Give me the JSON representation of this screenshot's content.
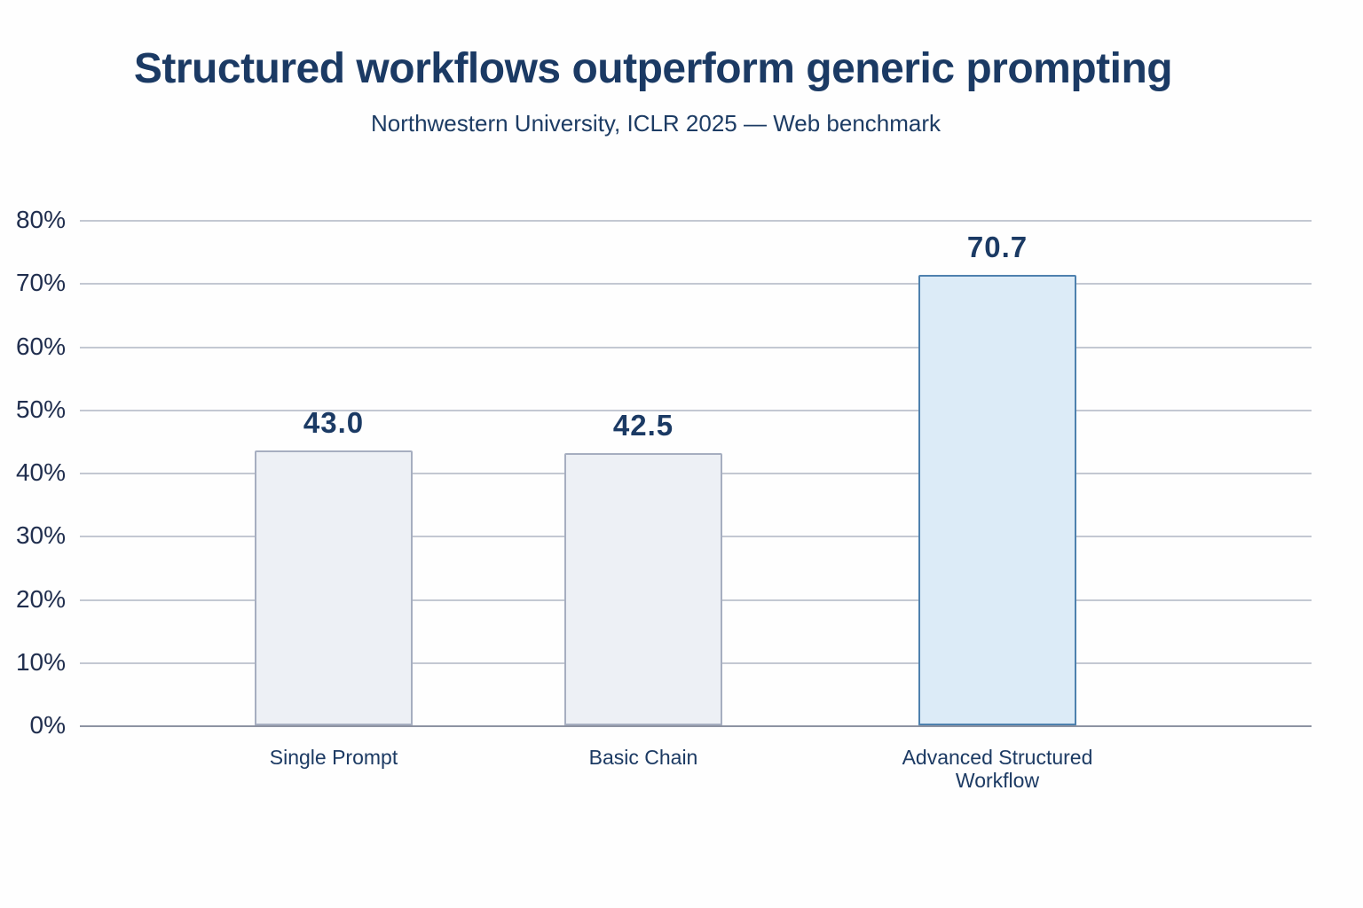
{
  "chart_data": {
    "type": "bar",
    "title": "Structured workflows outperform generic prompting",
    "subtitle": "Northwestern University, ICLR 2025 — Web benchmark",
    "categories": [
      "Single Prompt",
      "Basic Chain",
      "Advanced Structured Workflow"
    ],
    "values": [
      43.0,
      42.5,
      70.7
    ],
    "value_labels": [
      "43.0",
      "42.5",
      "70.7"
    ],
    "xlabel": "",
    "ylabel": "",
    "ylim": [
      0,
      80
    ],
    "yticks": [
      0,
      10,
      20,
      30,
      40,
      50,
      60,
      70,
      80
    ],
    "ytick_labels": [
      "0%",
      "10%",
      "20%",
      "30%",
      "40%",
      "50%",
      "60%",
      "70%",
      "80%"
    ],
    "grid": true,
    "legend": false,
    "highlight_index": 2,
    "colors": {
      "title_text": "#1b3a64",
      "axis_text": "#202e4e",
      "default_fill": "#edf0f5",
      "default_border": "#a6aec0",
      "highlight_fill": "#dcebf7",
      "highlight_border": "#4e81ae",
      "gridline": "#c3c8d2",
      "baseline": "#8d93a2"
    }
  }
}
